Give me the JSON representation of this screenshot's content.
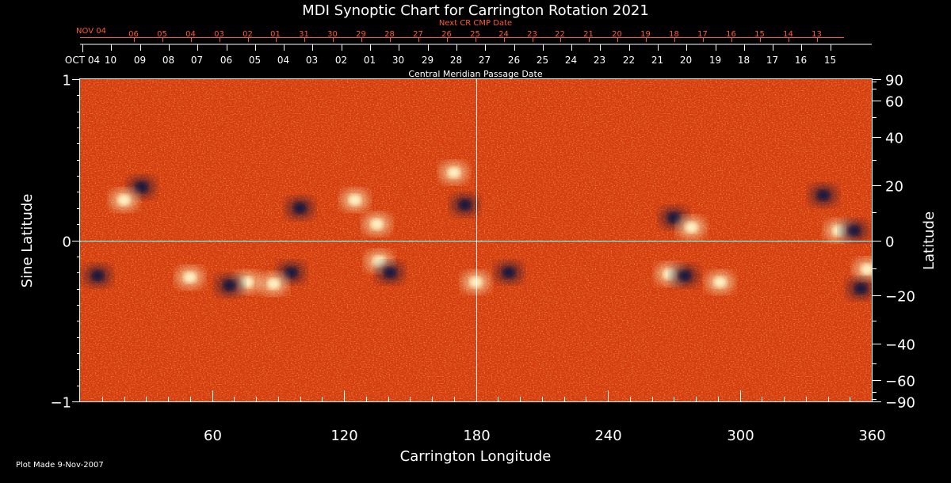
{
  "chart_data": {
    "type": "heatmap",
    "title": "MDI Synoptic Chart for Carrington Rotation 2021",
    "xlabel": "Carrington Longitude",
    "ylabel_left": "Sine Latitude",
    "ylabel_right": "Latitude",
    "x_range": [
      0,
      360
    ],
    "y_range": [
      -1,
      1
    ],
    "x_ticks": [
      60,
      120,
      180,
      240,
      300,
      360
    ],
    "y_ticks_left": [
      -1,
      0,
      1
    ],
    "y_ticks_right_deg": [
      90,
      60,
      40,
      20,
      0,
      -20,
      -40,
      -60,
      -90
    ],
    "top_axis": {
      "title": "Central Meridian Passage Date",
      "start_label": "OCT 04",
      "day_labels": [
        "10",
        "09",
        "08",
        "07",
        "06",
        "05",
        "04",
        "03",
        "02",
        "01",
        "30",
        "29",
        "28",
        "27",
        "26",
        "25",
        "24",
        "23",
        "22",
        "21",
        "20",
        "19",
        "18",
        "17",
        "16",
        "15"
      ]
    },
    "next_axis": {
      "title": "Next CR CMP Date",
      "start_label": "NOV 04",
      "day_labels": [
        "06",
        "05",
        "04",
        "03",
        "02",
        "01",
        "31",
        "30",
        "29",
        "28",
        "27",
        "26",
        "25",
        "24",
        "23",
        "22",
        "21",
        "20",
        "19",
        "18",
        "17",
        "16",
        "15",
        "14",
        "13"
      ]
    },
    "reference_lines": {
      "longitude": 180,
      "sine_latitude": 0
    },
    "grid": false,
    "colors": {
      "background": "#000000",
      "field_base": "#d83a10",
      "positive_polarity": "#fff7c8",
      "negative_polarity": "#14143c",
      "next_axis": "#ff5a28"
    },
    "active_regions": [
      {
        "lon": 345,
        "sinlat": 0.06,
        "polarity": "positive"
      },
      {
        "lon": 352,
        "sinlat": 0.06,
        "polarity": "negative"
      },
      {
        "lon": 338,
        "sinlat": 0.28,
        "polarity": "negative"
      },
      {
        "lon": 270,
        "sinlat": 0.14,
        "polarity": "negative"
      },
      {
        "lon": 278,
        "sinlat": 0.08,
        "polarity": "positive"
      },
      {
        "lon": 268,
        "sinlat": -0.21,
        "polarity": "positive"
      },
      {
        "lon": 275,
        "sinlat": -0.22,
        "polarity": "negative"
      },
      {
        "lon": 291,
        "sinlat": -0.26,
        "polarity": "positive"
      },
      {
        "lon": 358,
        "sinlat": -0.18,
        "polarity": "positive"
      },
      {
        "lon": 355,
        "sinlat": -0.3,
        "polarity": "negative"
      },
      {
        "lon": 180,
        "sinlat": -0.26,
        "polarity": "positive"
      },
      {
        "lon": 195,
        "sinlat": -0.2,
        "polarity": "negative"
      },
      {
        "lon": 136,
        "sinlat": -0.13,
        "polarity": "positive"
      },
      {
        "lon": 141,
        "sinlat": -0.2,
        "polarity": "negative"
      },
      {
        "lon": 96,
        "sinlat": -0.2,
        "polarity": "negative"
      },
      {
        "lon": 88,
        "sinlat": -0.27,
        "polarity": "positive"
      },
      {
        "lon": 76,
        "sinlat": -0.26,
        "polarity": "positive"
      },
      {
        "lon": 68,
        "sinlat": -0.28,
        "polarity": "negative"
      },
      {
        "lon": 50,
        "sinlat": -0.23,
        "polarity": "positive"
      },
      {
        "lon": 8,
        "sinlat": -0.22,
        "polarity": "negative"
      },
      {
        "lon": 28,
        "sinlat": 0.33,
        "polarity": "negative"
      },
      {
        "lon": 20,
        "sinlat": 0.25,
        "polarity": "positive"
      },
      {
        "lon": 170,
        "sinlat": 0.42,
        "polarity": "positive"
      },
      {
        "lon": 175,
        "sinlat": 0.22,
        "polarity": "negative"
      },
      {
        "lon": 125,
        "sinlat": 0.25,
        "polarity": "positive"
      },
      {
        "lon": 135,
        "sinlat": 0.1,
        "polarity": "positive"
      },
      {
        "lon": 100,
        "sinlat": 0.2,
        "polarity": "negative"
      }
    ]
  },
  "footer": {
    "plot_made": "Plot Made  9-Nov-2007"
  }
}
